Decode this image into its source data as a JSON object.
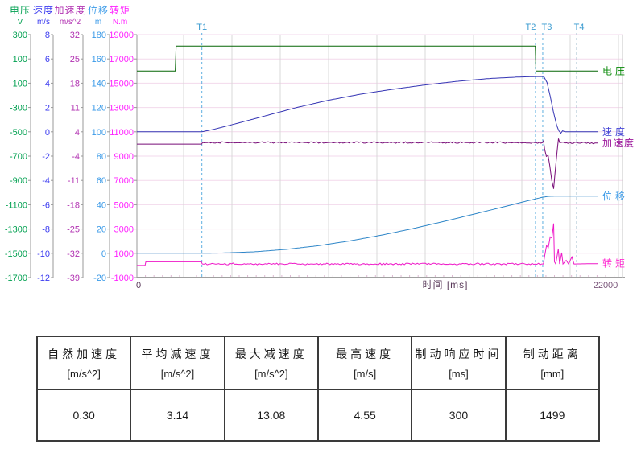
{
  "chart_data": {
    "type": "line",
    "title": "",
    "grid": true,
    "legend_position": "right",
    "x_axis": {
      "label": "时间 [ms]",
      "min": 0,
      "max": 22000,
      "start_tick_label": "0",
      "end_tick_label": "22000"
    },
    "y_axes": [
      {
        "id": "voltage",
        "name": "电压",
        "unit": "V",
        "max": 300,
        "min": -1700,
        "ticks": [
          300,
          100,
          -100,
          -300,
          -500,
          -700,
          -900,
          -1100,
          -1300,
          -1500,
          -1700
        ],
        "color": "#00a050"
      },
      {
        "id": "speed",
        "name": "速度",
        "unit": "m/s",
        "max": 8,
        "min": -12,
        "ticks": [
          8,
          6,
          4,
          2,
          0,
          -2,
          -4,
          -6,
          -8,
          -10,
          -12
        ],
        "color": "#3b3bf0"
      },
      {
        "id": "acceleration",
        "name": "加速度",
        "unit": "m/s^2",
        "max": 32,
        "min": -39,
        "ticks": [
          32,
          25,
          18,
          11,
          4,
          -4,
          -11,
          -18,
          -25,
          -32,
          -39
        ],
        "color": "#b233b2"
      },
      {
        "id": "displacement",
        "name": "位移",
        "unit": "m",
        "max": 180,
        "min": -20,
        "ticks": [
          180,
          160,
          140,
          120,
          100,
          80,
          60,
          40,
          20,
          0,
          -20
        ],
        "color": "#3a9ae8"
      },
      {
        "id": "torque",
        "name": "转矩",
        "unit": "N.m",
        "max": 19000,
        "min": -1000,
        "ticks": [
          19000,
          17000,
          15000,
          13000,
          11000,
          9000,
          7000,
          5000,
          3000,
          1000,
          -1000
        ],
        "color": "#ff22ff"
      }
    ],
    "series": [
      {
        "id": "voltage",
        "label": "电压",
        "axis": "voltage",
        "color": "#056605",
        "label_color": "#068806",
        "points": [
          [
            0,
            0
          ],
          [
            1800,
            0
          ],
          [
            1840,
            205
          ],
          [
            18700,
            205
          ],
          [
            18730,
            0
          ],
          [
            21660,
            0
          ]
        ]
      },
      {
        "id": "speed",
        "label": "速度",
        "axis": "speed",
        "color": "#3434b4",
        "label_color": "#4343d6",
        "points": [
          [
            0,
            0
          ],
          [
            3050,
            0
          ],
          [
            3600,
            0.2
          ],
          [
            4500,
            0.6
          ],
          [
            6000,
            1.3
          ],
          [
            7500,
            2.0
          ],
          [
            9000,
            2.6
          ],
          [
            10500,
            3.1
          ],
          [
            12000,
            3.5
          ],
          [
            13500,
            3.85
          ],
          [
            15000,
            4.15
          ],
          [
            16500,
            4.38
          ],
          [
            17800,
            4.5
          ],
          [
            18700,
            4.55
          ],
          [
            19100,
            4.55
          ],
          [
            19250,
            4.05
          ],
          [
            19400,
            2.95
          ],
          [
            19550,
            1.65
          ],
          [
            19700,
            0.55
          ],
          [
            19800,
            0.1
          ],
          [
            19900,
            -0.12
          ],
          [
            19980,
            0.08
          ],
          [
            20100,
            0
          ],
          [
            21660,
            0
          ]
        ]
      },
      {
        "id": "acceleration",
        "label": "加速度",
        "axis": "acceleration",
        "color": "#780c78",
        "label_color": "#9a149a",
        "noise": {
          "amp": 0.22,
          "from": 3120,
          "to": 21500
        },
        "points": [
          [
            0,
            0
          ],
          [
            3040,
            0
          ],
          [
            3080,
            0.5
          ],
          [
            19040,
            0.45
          ],
          [
            19090,
            1.0
          ],
          [
            19140,
            -1.5
          ],
          [
            19220,
            -3.6
          ],
          [
            19300,
            -3.3
          ],
          [
            19380,
            -6.3
          ],
          [
            19470,
            -10.5
          ],
          [
            19560,
            -13.08
          ],
          [
            19620,
            -9
          ],
          [
            19680,
            -5
          ],
          [
            19740,
            -1.2
          ],
          [
            19790,
            1.6
          ],
          [
            19850,
            0.4
          ],
          [
            21660,
            0.3
          ]
        ]
      },
      {
        "id": "displacement",
        "label": "位移",
        "axis": "displacement",
        "color": "#2e86c8",
        "label_color": "#3a9ae8",
        "points": [
          [
            0,
            0
          ],
          [
            3050,
            0
          ],
          [
            4000,
            0.2
          ],
          [
            5500,
            1.2
          ],
          [
            7000,
            3.2
          ],
          [
            8500,
            6.2
          ],
          [
            10000,
            10.2
          ],
          [
            11500,
            15
          ],
          [
            13000,
            20.5
          ],
          [
            14500,
            26.6
          ],
          [
            16000,
            33
          ],
          [
            17200,
            38.2
          ],
          [
            18200,
            42.6
          ],
          [
            18700,
            44.7
          ],
          [
            19050,
            46.2
          ],
          [
            19350,
            46.9
          ],
          [
            19600,
            47
          ],
          [
            21660,
            47
          ]
        ]
      },
      {
        "id": "torque",
        "label": "转矩",
        "axis": "torque",
        "color": "#ee18c8",
        "label_color": "#ff2ad2",
        "noise": {
          "amp": 70,
          "from": 3120,
          "to": 18950
        },
        "points": [
          [
            0,
            0
          ],
          [
            380,
            0
          ],
          [
            420,
            300
          ],
          [
            3020,
            300
          ],
          [
            3070,
            120
          ],
          [
            19080,
            120
          ],
          [
            19140,
            750
          ],
          [
            19230,
            1650
          ],
          [
            19310,
            1450
          ],
          [
            19400,
            2350
          ],
          [
            19480,
            2250
          ],
          [
            19560,
            3450
          ],
          [
            19600,
            300
          ],
          [
            19660,
            120
          ],
          [
            19780,
            1350
          ],
          [
            19840,
            120
          ],
          [
            19940,
            1050
          ],
          [
            20000,
            120
          ],
          [
            20150,
            420
          ],
          [
            20260,
            120
          ],
          [
            20420,
            700
          ],
          [
            20520,
            120
          ],
          [
            21660,
            150
          ]
        ]
      }
    ],
    "markers": [
      {
        "label": "T1",
        "t": 3050,
        "line_color": "#5fb0e0",
        "label_color": "#3a9bd0"
      },
      {
        "label": "T2",
        "t": 18710,
        "line_color": "#5fb0e0",
        "label_color": "#3a9bd0"
      },
      {
        "label": "T3",
        "t": 19050,
        "line_color": "#5fb0e0",
        "label_color": "#3a9bd0"
      },
      {
        "label": "T4",
        "t": 20640,
        "line_color": "#9fbccb",
        "label_color": "#3a9bd0"
      }
    ]
  },
  "table": {
    "columns": [
      {
        "header": "自然加速度",
        "unit": "[m/s^2]",
        "value": "0.30"
      },
      {
        "header": "平均减速度",
        "unit": "[m/s^2]",
        "value": "3.14"
      },
      {
        "header": "最大减速度",
        "unit": "[m/s^2]",
        "value": "13.08"
      },
      {
        "header": "最高速度",
        "unit": "[m/s]",
        "value": "4.55"
      },
      {
        "header": "制动响应时间",
        "unit": "[ms]",
        "value": "300"
      },
      {
        "header": "制动距离",
        "unit": "[mm]",
        "value": "1499"
      }
    ]
  }
}
